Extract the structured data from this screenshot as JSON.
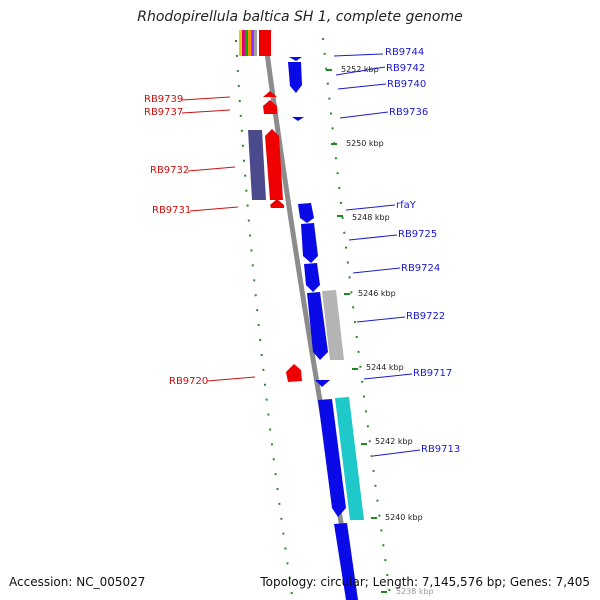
{
  "title": "Rhodopirellula baltica SH 1, complete genome",
  "footer": {
    "accession": "Accession: NC_005027",
    "stats": "Topology: circular; Length: 7,145,576 bp; Genes: 7,405"
  },
  "kbp_labels": [
    "5252 kbp",
    "5250 kbp",
    "5248 kbp",
    "5246 kbp",
    "5244 kbp",
    "5242 kbp",
    "5240 kbp",
    "5238 kbp"
  ],
  "forward_genes": [
    "RB9744",
    "RB9742",
    "RB9740",
    "RB9736",
    "rfaY",
    "RB9725",
    "RB9724",
    "RB9722",
    "RB9717",
    "RB9713"
  ],
  "reverse_genes": [
    "RB9739",
    "RB9737",
    "RB9732",
    "RB9731",
    "RB9720"
  ],
  "colors": {
    "forward": "#0a0ae6",
    "reverse": "#ee0000",
    "backbone": "#888888",
    "tick": "#228822",
    "gray_feature": "#b4b4b4",
    "cyan_feature": "#1fc9c9",
    "purple_feature": "#4a4a8c"
  }
}
